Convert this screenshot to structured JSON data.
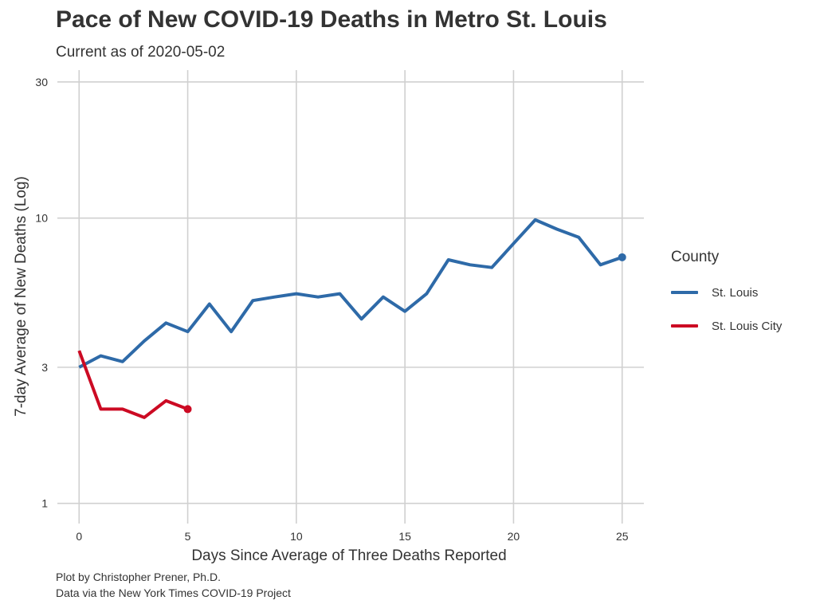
{
  "title": "Pace of New COVID-19 Deaths in Metro St. Louis",
  "subtitle": "Current as of 2020-05-02",
  "caption_line1": "Plot by Christopher Prener, Ph.D.",
  "caption_line2": "Data via the New York Times COVID-19 Project",
  "chart_data": {
    "type": "line",
    "title": "Pace of New COVID-19 Deaths in Metro St. Louis",
    "subtitle": "Current as of 2020-05-02",
    "xlabel": "Days Since Average of Three Deaths Reported",
    "ylabel": "7-day Average of New Deaths (Log)",
    "x_scale": "linear",
    "y_scale": "log",
    "xlim": [
      -1,
      26
    ],
    "ylim": [
      0.85,
      33
    ],
    "x_ticks": [
      0,
      5,
      10,
      15,
      20,
      25
    ],
    "y_ticks": [
      1,
      3,
      10,
      30
    ],
    "grid": true,
    "legend": {
      "title": "County",
      "position": "right"
    },
    "series": [
      {
        "name": "St. Louis",
        "color": "#2e6aa8",
        "end_marker": true,
        "x": [
          0,
          1,
          2,
          3,
          4,
          5,
          6,
          7,
          8,
          9,
          10,
          11,
          12,
          13,
          14,
          15,
          16,
          17,
          18,
          19,
          20,
          21,
          22,
          23,
          24,
          25
        ],
        "y": [
          3.0,
          3.29,
          3.14,
          3.71,
          4.29,
          4.0,
          5.0,
          4.0,
          5.14,
          5.29,
          5.43,
          5.29,
          5.43,
          4.43,
          5.29,
          4.71,
          5.43,
          7.14,
          6.86,
          6.71,
          8.14,
          9.86,
          9.14,
          8.57,
          6.86,
          7.29
        ]
      },
      {
        "name": "St. Louis City",
        "color": "#cc0a23",
        "end_marker": true,
        "x": [
          0,
          1,
          2,
          3,
          4,
          5
        ],
        "y": [
          3.43,
          2.14,
          2.14,
          2.0,
          2.29,
          2.14
        ]
      }
    ]
  }
}
